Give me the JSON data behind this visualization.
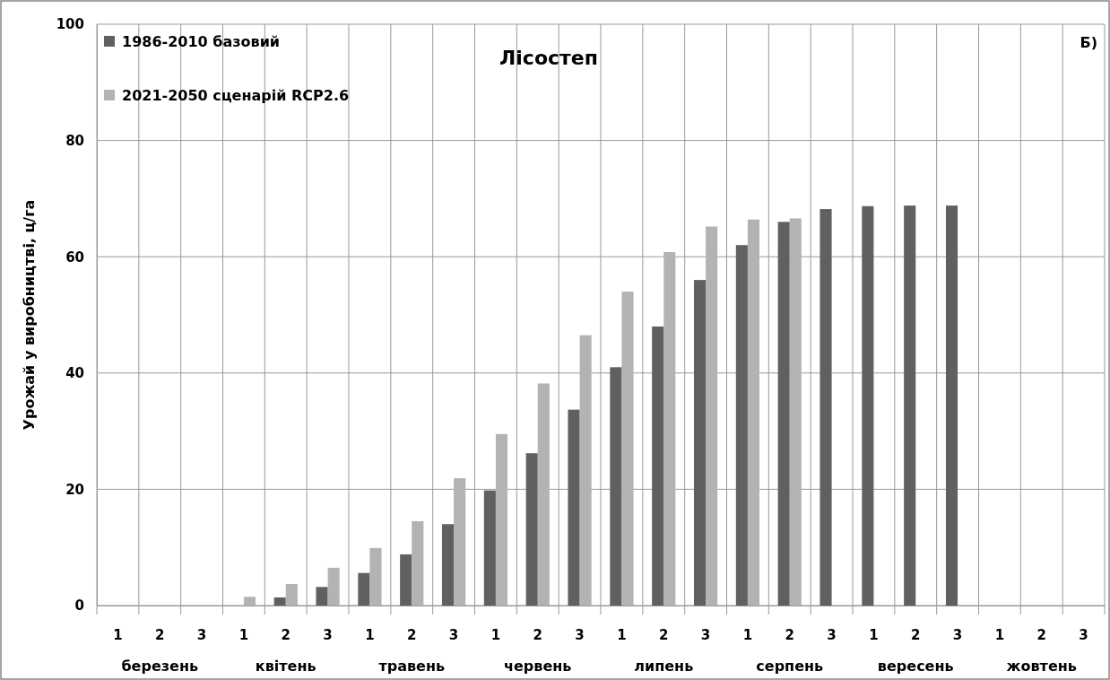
{
  "chart_data": {
    "type": "bar",
    "title": "Лісостеп",
    "ylabel": "Урожай у виробництві, ц/га",
    "categories": [
      "1",
      "2",
      "3",
      "1",
      "2",
      "3",
      "1",
      "2",
      "3",
      "1",
      "2",
      "3",
      "1",
      "2",
      "3",
      "1",
      "2",
      "3",
      "1",
      "2",
      "3",
      "1",
      "2",
      "3"
    ],
    "annotations": [
      "березень",
      "квітень",
      "травень",
      "червень",
      "липень",
      "серпень",
      "вересень",
      "жовтень",
      "Б)"
    ],
    "series": [
      {
        "name": "1986-2010 базовий",
        "color": "#606060",
        "values": [
          null,
          null,
          null,
          null,
          1.4,
          3.2,
          5.6,
          8.8,
          14.0,
          19.8,
          26.2,
          33.7,
          41,
          48,
          56,
          62,
          66,
          68.2,
          68.7,
          68.8,
          68.8,
          null,
          null,
          null
        ]
      },
      {
        "name": "2021-2050 сценарій RCP2.6",
        "color": "#b3b3b3",
        "values": [
          null,
          null,
          null,
          1.5,
          3.7,
          6.5,
          9.9,
          14.5,
          21.9,
          29.5,
          38.2,
          46.5,
          54,
          60.8,
          65.2,
          66.4,
          66.6,
          null,
          null,
          null,
          null,
          null,
          null,
          null
        ]
      }
    ],
    "ylim": [
      0,
      100
    ],
    "yticks": [
      0,
      20,
      40,
      60,
      80,
      100
    ],
    "grid": true,
    "legend": "top left"
  }
}
